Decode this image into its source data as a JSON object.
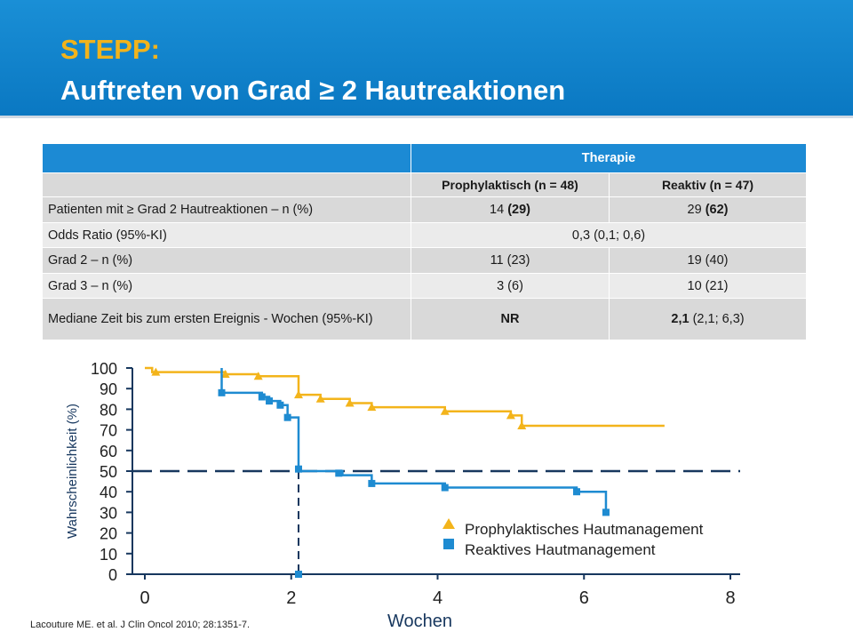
{
  "slide": {
    "title_line1": "STEPP:",
    "title_line2": "Auftreten von Grad ≥ 2 Hautreaktionen",
    "citation": "Lacouture ME. et al. J Clin Oncol 2010; 28:1351-7."
  },
  "table": {
    "header": "Therapie",
    "col1": "Prophylaktisch (n = 48)",
    "col2": "Reaktiv (n = 47)",
    "rows": [
      {
        "label": "Patienten mit ≥ Grad 2 Hautreaktionen – n (%)",
        "prophylactic_n": "14",
        "prophylactic_pct": "(29)",
        "reactive_n": "29",
        "reactive_pct": "(62)"
      },
      {
        "label": "Odds Ratio (95%-KI)",
        "merged": "0,3 (0,1; 0,6)"
      },
      {
        "label": "Grad 2 – n (%)",
        "prophylactic": "11 (23)",
        "reactive": "19 (40)"
      },
      {
        "label": "Grad 3 – n (%)",
        "prophylactic": "3 (6)",
        "reactive": "10 (21)"
      },
      {
        "label": "Mediane Zeit bis zum ersten Ereignis - Wochen (95%-KI)",
        "prophylactic": "NR",
        "reactive_median": "2,1",
        "reactive_ci": "(2,1; 6,3)"
      }
    ]
  },
  "colors": {
    "prophylactic": "#f3b41b",
    "reactive": "#1e8bd1",
    "reference_line": "#17375e"
  },
  "chart_data": {
    "type": "line",
    "subtype": "kaplan-meier step",
    "xlabel": "Wochen",
    "ylabel": "Wahrscheinlichkeit (%)",
    "xlim": [
      0,
      8
    ],
    "ylim": [
      0,
      100
    ],
    "xticks": [
      0,
      2,
      4,
      6,
      8
    ],
    "yticks": [
      0,
      10,
      20,
      30,
      40,
      50,
      60,
      70,
      80,
      90,
      100
    ],
    "median_reference": {
      "y": 50,
      "x": 2.1
    },
    "legend_position": "bottom-right",
    "series": [
      {
        "name": "Prophylaktisches Hautmanagement",
        "marker": "triangle",
        "steps": [
          [
            0,
            100
          ],
          [
            0.1,
            98
          ],
          [
            1.1,
            97
          ],
          [
            1.55,
            96
          ],
          [
            2.1,
            87
          ],
          [
            2.4,
            85
          ],
          [
            2.8,
            83
          ],
          [
            3.1,
            81
          ],
          [
            4.1,
            79
          ],
          [
            5,
            77
          ],
          [
            5.15,
            72
          ],
          [
            7.1,
            72
          ]
        ],
        "markers": [
          [
            0.15,
            98
          ],
          [
            1.1,
            97
          ],
          [
            1.55,
            96
          ],
          [
            2.1,
            87
          ],
          [
            2.4,
            85
          ],
          [
            2.8,
            83
          ],
          [
            3.1,
            81
          ],
          [
            4.1,
            79
          ],
          [
            5,
            77
          ],
          [
            5.15,
            72
          ]
        ]
      },
      {
        "name": "Reaktives Hautmanagement",
        "marker": "square",
        "steps": [
          [
            1.05,
            100
          ],
          [
            1.05,
            88
          ],
          [
            1.6,
            86
          ],
          [
            1.7,
            84
          ],
          [
            1.85,
            82
          ],
          [
            1.95,
            76
          ],
          [
            2.1,
            50
          ],
          [
            2.7,
            48
          ],
          [
            3.1,
            44
          ],
          [
            4.1,
            42
          ],
          [
            5.9,
            40
          ],
          [
            6.3,
            30
          ]
        ],
        "markers": [
          [
            1.05,
            88
          ],
          [
            1.6,
            86
          ],
          [
            1.7,
            84
          ],
          [
            1.85,
            82
          ],
          [
            1.95,
            76
          ],
          [
            2.1,
            51
          ],
          [
            2.65,
            49
          ],
          [
            3.1,
            44
          ],
          [
            4.1,
            42
          ],
          [
            5.9,
            40
          ],
          [
            6.3,
            30
          ],
          [
            2.1,
            0
          ]
        ]
      }
    ]
  }
}
